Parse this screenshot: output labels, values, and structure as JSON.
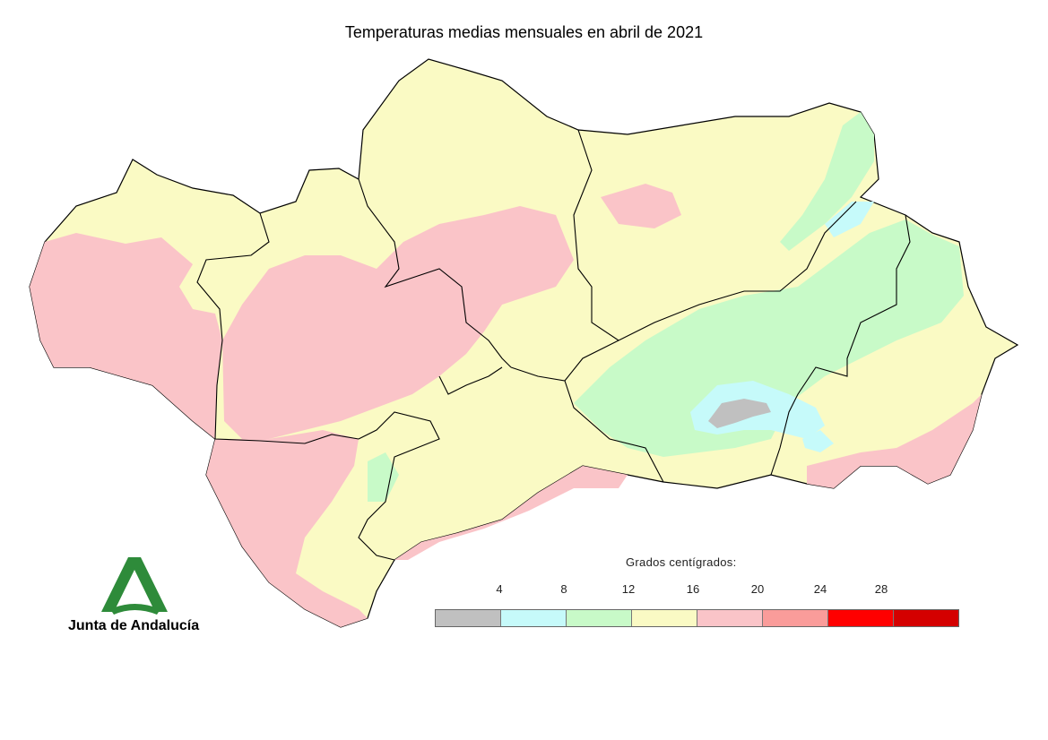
{
  "title": "Temperaturas medias mensuales en abril de 2021",
  "legend": {
    "title": "Grados centígrados:",
    "ticks": [
      "4",
      "8",
      "12",
      "16",
      "20",
      "24",
      "28"
    ],
    "classes": [
      {
        "range": "< 4",
        "color": "#c0c0c0"
      },
      {
        "range": "4-8",
        "color": "#c6fafa"
      },
      {
        "range": "8-12",
        "color": "#c8fac8"
      },
      {
        "range": "12-16",
        "color": "#fafac4"
      },
      {
        "range": "16-20",
        "color": "#fac4c8"
      },
      {
        "range": "20-24",
        "color": "#fa9c9a"
      },
      {
        "range": "24-28",
        "color": "#ff0000"
      },
      {
        "range": "> 28",
        "color": "#d40000"
      }
    ]
  },
  "logo": {
    "text": "Junta de Andalucía",
    "color": "#2e8b3a"
  },
  "map_colors": {
    "cold": "#c0c0c0",
    "cool": "#c6fafa",
    "mild": "#c8fac8",
    "moderate": "#fafac4",
    "warm": "#fac4c8",
    "border": "#000000"
  }
}
